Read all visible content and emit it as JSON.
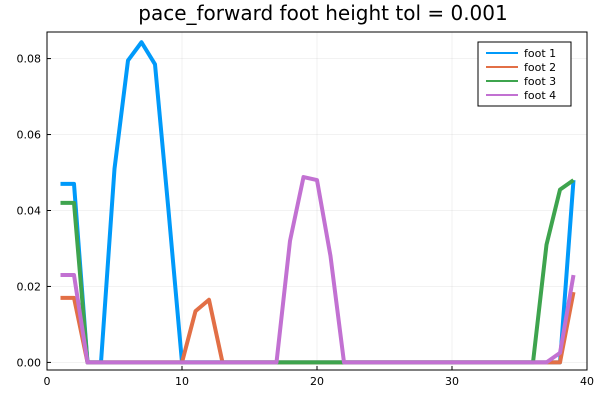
{
  "chart_data": {
    "type": "line",
    "title": "pace_forward foot height tol = 0.001",
    "xlabel": "",
    "ylabel": "",
    "xlim": [
      0,
      40
    ],
    "ylim": [
      -0.002,
      0.087
    ],
    "xticks": [
      0,
      10,
      20,
      30,
      40
    ],
    "yticks": [
      0.0,
      0.02,
      0.04,
      0.06,
      0.08
    ],
    "xtick_labels": [
      "0",
      "10",
      "20",
      "30",
      "40"
    ],
    "ytick_labels": [
      "0.00",
      "0.02",
      "0.04",
      "0.06",
      "0.08"
    ],
    "grid": true,
    "legend_position": "top-right",
    "x": [
      1,
      2,
      3,
      4,
      5,
      6,
      7,
      8,
      9,
      10,
      11,
      12,
      13,
      14,
      15,
      16,
      17,
      18,
      19,
      20,
      21,
      22,
      23,
      24,
      25,
      26,
      27,
      28,
      29,
      30,
      31,
      32,
      33,
      34,
      35,
      36,
      37,
      38,
      39
    ],
    "series": [
      {
        "name": "foot 1",
        "color": "#009AFA",
        "values": [
          0.047,
          0.047,
          0,
          0,
          0.051,
          0.0795,
          0.0843,
          0.0785,
          0.04,
          0,
          0,
          0,
          0,
          0,
          0,
          0,
          0,
          0,
          0,
          0,
          0,
          0,
          0,
          0,
          0,
          0,
          0,
          0,
          0,
          0,
          0,
          0,
          0,
          0,
          0,
          0,
          0,
          0,
          0.048
        ]
      },
      {
        "name": "foot 2",
        "color": "#E26F46",
        "values": [
          0.017,
          0.017,
          0,
          0,
          0,
          0,
          0,
          0,
          0,
          0,
          0.0135,
          0.0165,
          0,
          0,
          0,
          0,
          0,
          0,
          0,
          0,
          0,
          0,
          0,
          0,
          0,
          0,
          0,
          0,
          0,
          0,
          0,
          0,
          0,
          0,
          0,
          0,
          0,
          0,
          0.0185
        ]
      },
      {
        "name": "foot 3",
        "color": "#3EA44E",
        "values": [
          0.042,
          0.042,
          0,
          0,
          0,
          0,
          0,
          0,
          0,
          0,
          0,
          0,
          0,
          0,
          0,
          0,
          0,
          0,
          0,
          0,
          0,
          0,
          0,
          0,
          0,
          0,
          0,
          0,
          0,
          0,
          0,
          0,
          0,
          0,
          0,
          0,
          0.031,
          0.0455,
          0.048
        ]
      },
      {
        "name": "foot 4",
        "color": "#C271D2",
        "values": [
          0.023,
          0.023,
          0,
          0,
          0,
          0,
          0,
          0,
          0,
          0,
          0,
          0,
          0,
          0,
          0,
          0,
          0,
          0.032,
          0.0488,
          0.048,
          0.028,
          0,
          0,
          0,
          0,
          0,
          0,
          0,
          0,
          0,
          0,
          0,
          0,
          0,
          0,
          0,
          0,
          0.0025,
          0.023
        ]
      }
    ]
  }
}
